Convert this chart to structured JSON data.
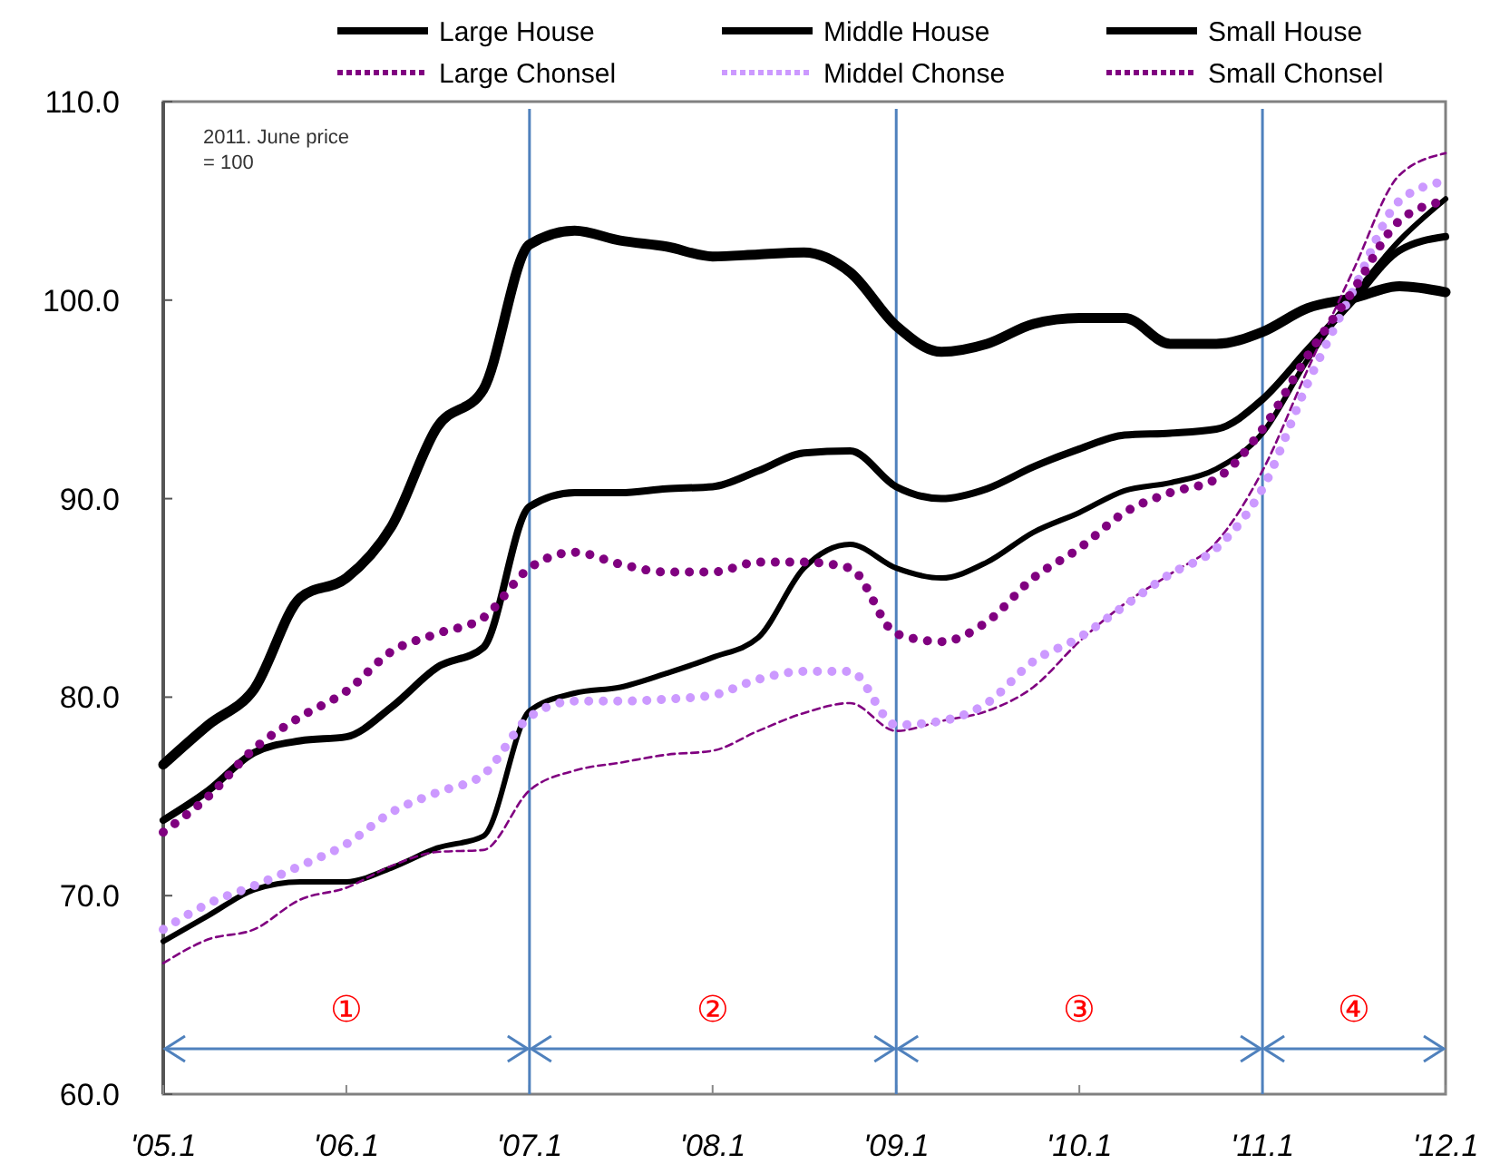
{
  "chart_data": {
    "type": "line",
    "x": [
      "2005-01",
      "2005-04",
      "2005-07",
      "2005-10",
      "2006-01",
      "2006-04",
      "2006-07",
      "2006-10",
      "2007-01",
      "2007-04",
      "2007-07",
      "2007-10",
      "2008-01",
      "2008-04",
      "2008-07",
      "2008-10",
      "2009-01",
      "2009-04",
      "2009-07",
      "2009-10",
      "2010-01",
      "2010-04",
      "2010-07",
      "2010-10",
      "2011-01",
      "2011-04",
      "2011-07",
      "2011-10",
      "2012-01"
    ],
    "series": [
      {
        "name": "Large House",
        "color": "#000000",
        "line_style": "solid",
        "values": [
          76.6,
          78.6,
          80.4,
          85,
          86,
          88.6,
          93.6,
          95.5,
          102.8,
          103.5,
          103,
          102.7,
          102.2,
          102.3,
          102.4,
          101.4,
          98.7,
          97.4,
          97.8,
          98.8,
          99.1,
          99.1,
          97.8,
          97.8,
          98.4,
          99.6,
          100.1,
          100.7,
          100.4
        ]
      },
      {
        "name": "Middle House",
        "color": "#000000",
        "line_style": "solid",
        "values": [
          73.8,
          75.3,
          77.2,
          77.8,
          78,
          79.5,
          81.5,
          82.5,
          89.6,
          90.3,
          90.3,
          90.5,
          90.6,
          91.4,
          92.3,
          92.4,
          90.6,
          90,
          90.5,
          91.6,
          92.5,
          93.2,
          93.3,
          93.5,
          95,
          97.5,
          100,
          102.5,
          103.2
        ]
      },
      {
        "name": "Small House",
        "color": "#000000",
        "line_style": "solid",
        "values": [
          67.7,
          69,
          70.3,
          70.7,
          70.7,
          71.4,
          72.4,
          73,
          79.3,
          80.2,
          80.5,
          81.2,
          82,
          83,
          86.5,
          87.7,
          86.5,
          86,
          86.8,
          88.3,
          89.3,
          90.4,
          90.8,
          91.5,
          93.3,
          97,
          100.2,
          103,
          105.1
        ]
      },
      {
        "name": "Large Chonsel",
        "color": "#800080",
        "line_style": "dashed",
        "values": [
          66.6,
          67.8,
          68.3,
          69.8,
          70.4,
          71.5,
          72.2,
          72.3,
          75.3,
          76.3,
          76.7,
          77.1,
          77.3,
          78.3,
          79.2,
          79.7,
          78.3,
          78.8,
          79.3,
          80.5,
          82.8,
          84.7,
          86.2,
          87.8,
          91.4,
          96.5,
          101.5,
          106.3,
          107.4
        ]
      },
      {
        "name": "Middel Chonse",
        "color": "#cc99ff",
        "line_style": "dotted",
        "values": [
          68.3,
          69.6,
          70.5,
          71.5,
          72.6,
          74.2,
          75.2,
          76.1,
          79,
          79.8,
          79.8,
          79.9,
          80.1,
          80.9,
          81.3,
          81.3,
          78.6,
          78.8,
          79.7,
          81.8,
          83,
          84.6,
          86.2,
          87.5,
          90.5,
          95.8,
          100.5,
          105,
          106
        ]
      },
      {
        "name": "Small Chonsel",
        "color": "#800080",
        "line_style": "dotted",
        "values": [
          73.2,
          75,
          77.4,
          79,
          80.3,
          82.3,
          83.2,
          84,
          86.5,
          87.3,
          86.7,
          86.3,
          86.3,
          86.8,
          86.8,
          86.5,
          83.2,
          82.8,
          83.8,
          86,
          87.5,
          89.3,
          90.3,
          91,
          93.5,
          97.2,
          100.5,
          104,
          105
        ]
      }
    ],
    "xlim": [
      "2005-01",
      "2012-01"
    ],
    "xticks": [
      {
        "value": "2005-01",
        "label": "'05.1"
      },
      {
        "value": "2006-01",
        "label": "'06.1"
      },
      {
        "value": "2007-01",
        "label": "'07.1"
      },
      {
        "value": "2008-01",
        "label": "'08.1"
      },
      {
        "value": "2009-01",
        "label": "'09.1"
      },
      {
        "value": "2010-01",
        "label": "'10.1"
      },
      {
        "value": "2011-01",
        "label": "'11.1"
      },
      {
        "value": "2012-01",
        "label": "'12.1"
      }
    ],
    "ylim": [
      60,
      110
    ],
    "yticks": [
      {
        "value": 60,
        "label": "60.0"
      },
      {
        "value": 70,
        "label": "70.0"
      },
      {
        "value": 80,
        "label": "80.0"
      },
      {
        "value": 90,
        "label": "90.0"
      },
      {
        "value": 100,
        "label": "100.0"
      },
      {
        "value": 110,
        "label": "110.0"
      }
    ],
    "ref_lines": [
      {
        "axis": "x",
        "value": "2007-01",
        "color": "#4f81bd"
      },
      {
        "axis": "x",
        "value": "2009-01",
        "color": "#4f81bd"
      },
      {
        "axis": "x",
        "value": "2011-01",
        "color": "#4f81bd"
      }
    ],
    "annotations": [
      "2011. June price\n= 100",
      "①",
      "②",
      "③",
      "④"
    ],
    "grid": false,
    "legend": "top",
    "marker": "none"
  }
}
